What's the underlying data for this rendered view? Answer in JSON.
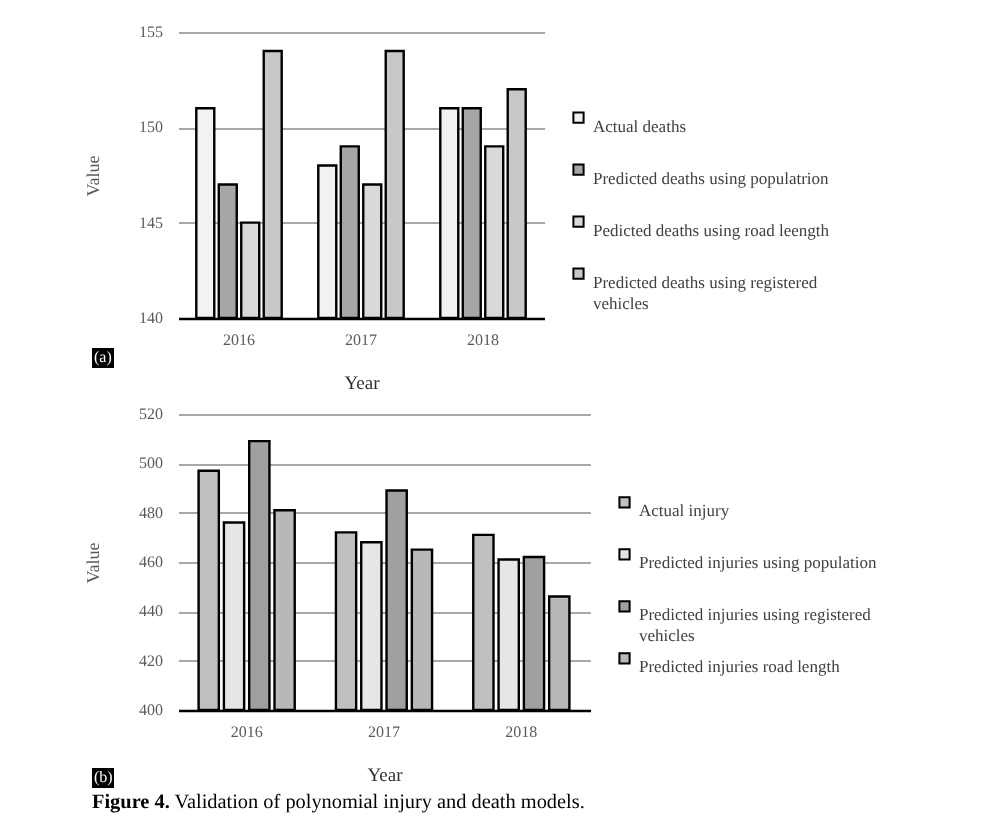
{
  "chart_data": [
    {
      "type": "bar",
      "categories": [
        "2016",
        "2017",
        "2018"
      ],
      "xlabel": "Year",
      "ylabel": "Value",
      "series": [
        {
          "name": "Actual deaths",
          "color": "#f2f2f2",
          "values": [
            151,
            148,
            151
          ]
        },
        {
          "name": "Predicted deaths using populatrion",
          "color": "#a6a6a6",
          "values": [
            147,
            149,
            151
          ]
        },
        {
          "name": "Pedicted deaths using road leength",
          "color": "#d9d9d9",
          "values": [
            145,
            147,
            149
          ]
        },
        {
          "name": "Predicted deaths using registered vehicles",
          "color": "#c8c8c8",
          "values": [
            154,
            154,
            152
          ]
        }
      ],
      "ylim": [
        140,
        155
      ],
      "yticks": [
        140,
        145,
        150,
        155
      ],
      "grid": "y",
      "legend": "right",
      "annotations": [
        "(a)"
      ]
    },
    {
      "type": "bar",
      "categories": [
        "2016",
        "2017",
        "2018"
      ],
      "xlabel": "Year",
      "ylabel": "Value",
      "series": [
        {
          "name": "Actual injury",
          "color": "#c0c0c0",
          "values": [
            497,
            472,
            471
          ]
        },
        {
          "name": "Predicted injuries using population",
          "color": "#e6e6e6",
          "values": [
            476,
            468,
            461
          ]
        },
        {
          "name": "Predicted injuries using registered vehicles",
          "color": "#a0a0a0",
          "values": [
            509,
            489,
            462
          ]
        },
        {
          "name": "Predicted injuries road length",
          "color": "#b8b8b8",
          "values": [
            481,
            465,
            446
          ]
        }
      ],
      "ylim": [
        400,
        520
      ],
      "yticks": [
        400,
        420,
        440,
        460,
        480,
        500,
        520
      ],
      "grid": "y",
      "legend": "right",
      "annotations": [
        "(b)",
        "Figure 4. Validation of polynomial injury and death models."
      ]
    }
  ]
}
